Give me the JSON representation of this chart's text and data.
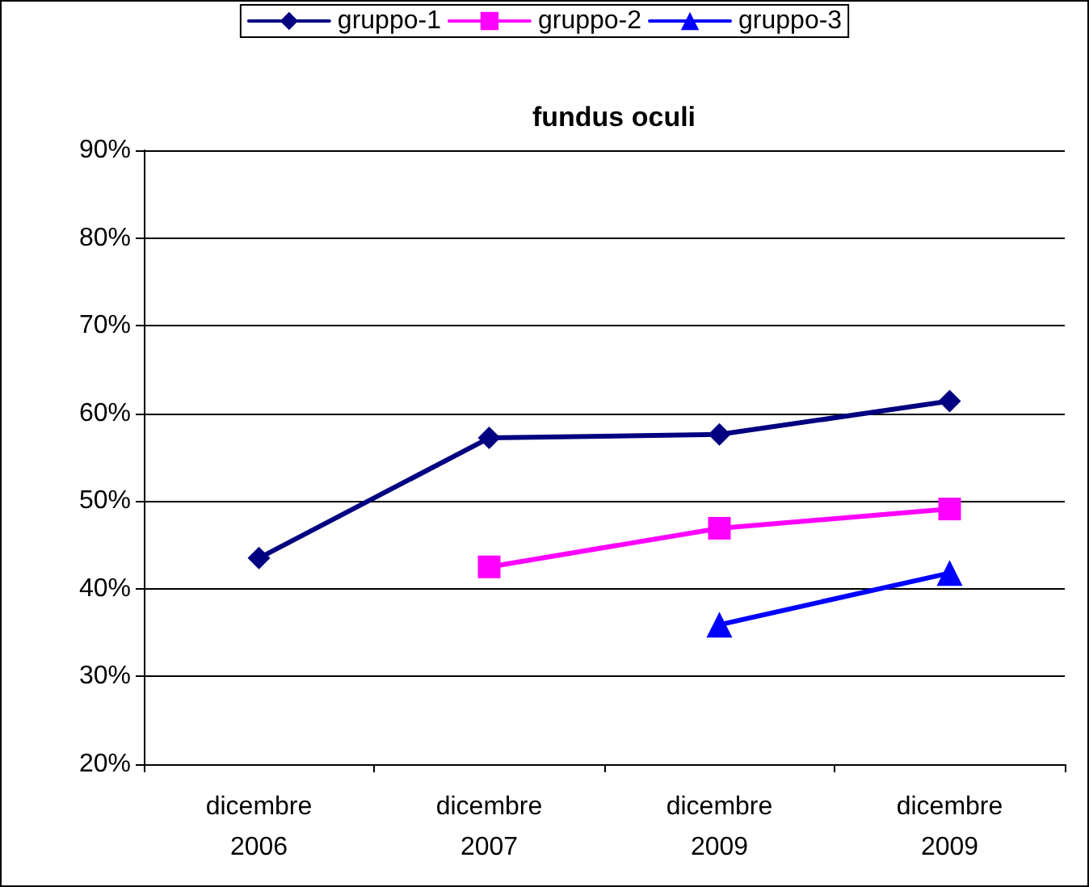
{
  "chart_data": {
    "type": "line",
    "title": "fundus oculi",
    "categories": [
      "dicembre\n2006",
      "dicembre\n2007",
      "dicembre\n2009",
      "dicembre\n2009"
    ],
    "series": [
      {
        "name": "gruppo-1",
        "color": "#000080",
        "marker": "diamond",
        "values": [
          43.5,
          57.2,
          57.6,
          61.4
        ]
      },
      {
        "name": "gruppo-2",
        "color": "#ff00ff",
        "marker": "square",
        "values": [
          null,
          42.5,
          46.9,
          49.1
        ]
      },
      {
        "name": "gruppo-3",
        "color": "#0000ff",
        "marker": "triangle",
        "values": [
          null,
          null,
          35.9,
          41.8
        ]
      }
    ],
    "ylim": [
      20,
      90
    ],
    "yticks": [
      {
        "value": 20,
        "label": "20%"
      },
      {
        "value": 30,
        "label": "30%"
      },
      {
        "value": 40,
        "label": "40%"
      },
      {
        "value": 50,
        "label": "50%"
      },
      {
        "value": 60,
        "label": "60%"
      },
      {
        "value": 70,
        "label": "70%"
      },
      {
        "value": 80,
        "label": "80%"
      },
      {
        "value": 90,
        "label": "90%"
      }
    ],
    "grid": "y",
    "legend": "top",
    "line_style": "solid"
  }
}
